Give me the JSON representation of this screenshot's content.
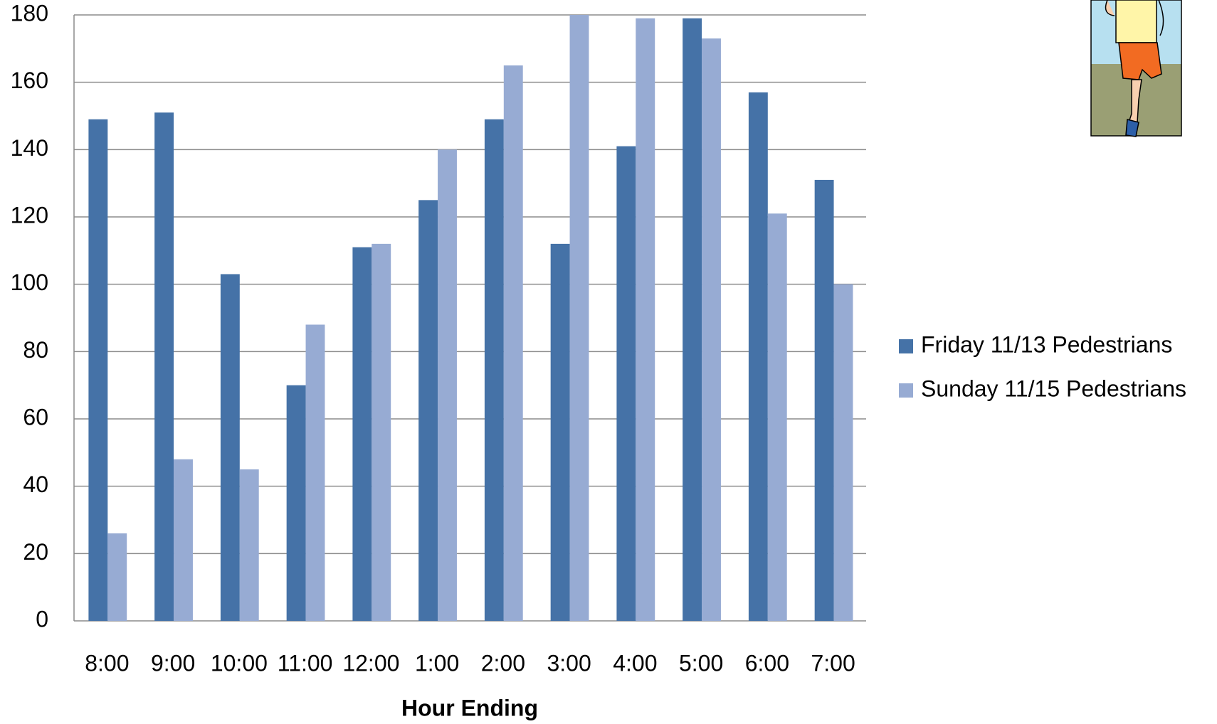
{
  "chart_data": {
    "type": "bar",
    "x_label": "Hour Ending",
    "categories": [
      "8:00",
      "9:00",
      "10:00",
      "11:00",
      "12:00",
      "1:00",
      "2:00",
      "3:00",
      "4:00",
      "5:00",
      "6:00",
      "7:00"
    ],
    "series": [
      {
        "name": "Friday 11/13 Pedestrians",
        "color": "#4572a7",
        "values": [
          149,
          151,
          103,
          70,
          111,
          125,
          149,
          112,
          141,
          179,
          157,
          131
        ]
      },
      {
        "name": "Sunday 11/15 Pedestrians",
        "color": "#97abd3",
        "values": [
          26,
          48,
          45,
          88,
          112,
          140,
          165,
          180,
          179,
          173,
          121,
          100
        ]
      }
    ],
    "ylim": [
      0,
      180
    ],
    "yticks": [
      0,
      20,
      40,
      60,
      80,
      100,
      120,
      140,
      160,
      180
    ],
    "grid": true,
    "legend": "right"
  }
}
